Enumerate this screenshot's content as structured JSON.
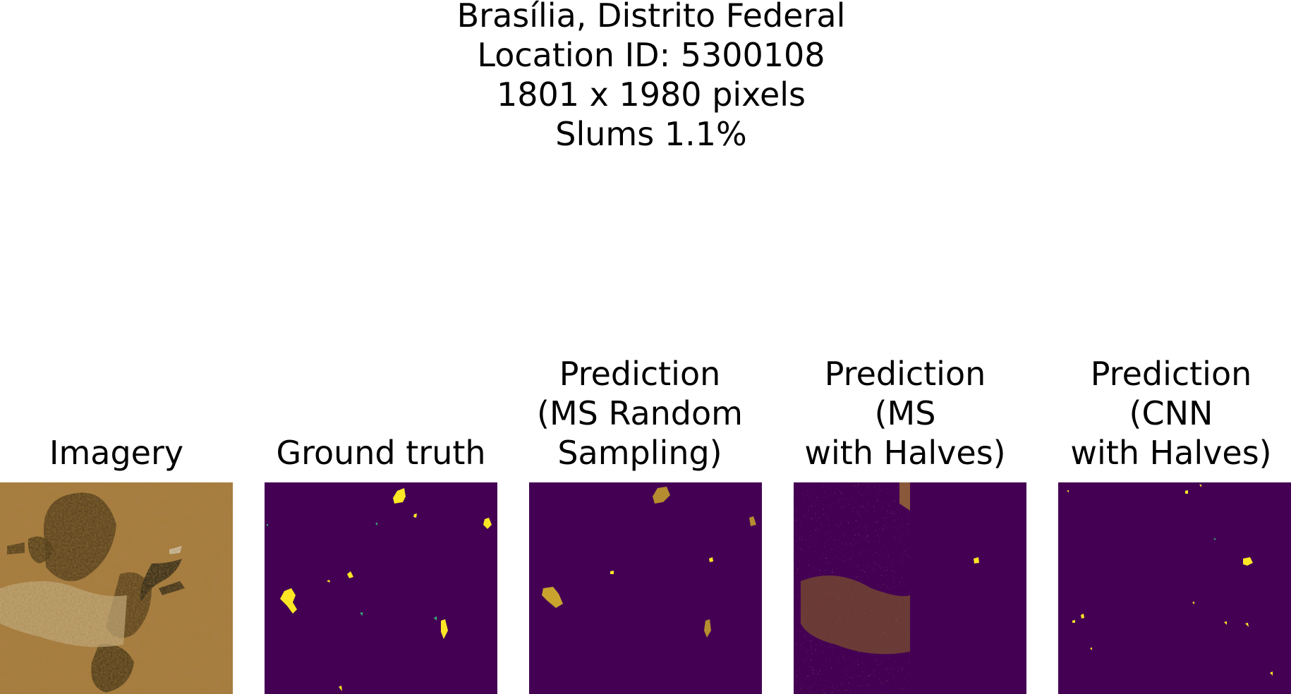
{
  "title": {
    "line1": "Brasília, Distrito Federal",
    "line2": "Location ID: 5300108",
    "line3": "1801 x 1980 pixels",
    "line4": "Slums 1.1%"
  },
  "panels": [
    {
      "lines": [
        "Imagery"
      ]
    },
    {
      "lines": [
        "Ground truth"
      ]
    },
    {
      "lines": [
        "Prediction",
        "(MS Random",
        "Sampling)"
      ]
    },
    {
      "lines": [
        "Prediction",
        "(MS",
        "with Halves)"
      ]
    },
    {
      "lines": [
        "Prediction",
        "(CNN",
        "with Halves)"
      ]
    }
  ],
  "colors": {
    "background_class": "#440154",
    "slum_class": "#fde725",
    "edge_class": "#35b779",
    "imagery_base": "#a87c3a",
    "imagery_dark": "#3b2a12",
    "imagery_urban": "#c9b48c"
  }
}
